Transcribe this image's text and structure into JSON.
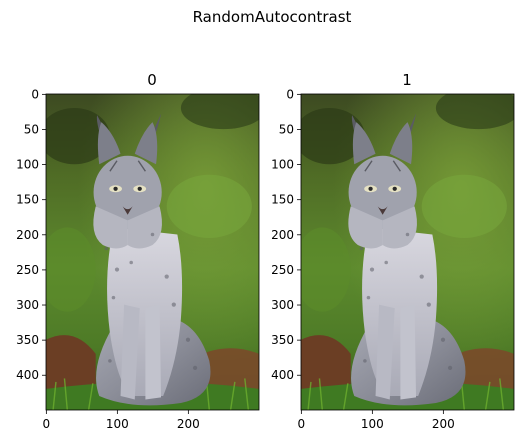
{
  "figure": {
    "suptitle": "RandomAutocontrast"
  },
  "panels": [
    {
      "title": "0",
      "image_subject": "lynx sitting on grass",
      "xaxis": {
        "ticks": [
          "0",
          "100",
          "200"
        ]
      },
      "yaxis": {
        "ticks": [
          "0",
          "50",
          "100",
          "150",
          "200",
          "250",
          "300",
          "350",
          "400"
        ]
      }
    },
    {
      "title": "1",
      "image_subject": "lynx sitting on grass",
      "xaxis": {
        "ticks": [
          "0",
          "100",
          "200"
        ]
      },
      "yaxis": {
        "ticks": [
          "0",
          "50",
          "100",
          "150",
          "200",
          "250",
          "300",
          "350",
          "400"
        ]
      }
    }
  ],
  "colors": {
    "background": "#ffffff",
    "axis_line": "#000000",
    "grass_dark": "#2f4a1c",
    "grass_light": "#6f9a3a",
    "fur_gray": "#8d8f9a",
    "soil_brown": "#6b3e24"
  }
}
